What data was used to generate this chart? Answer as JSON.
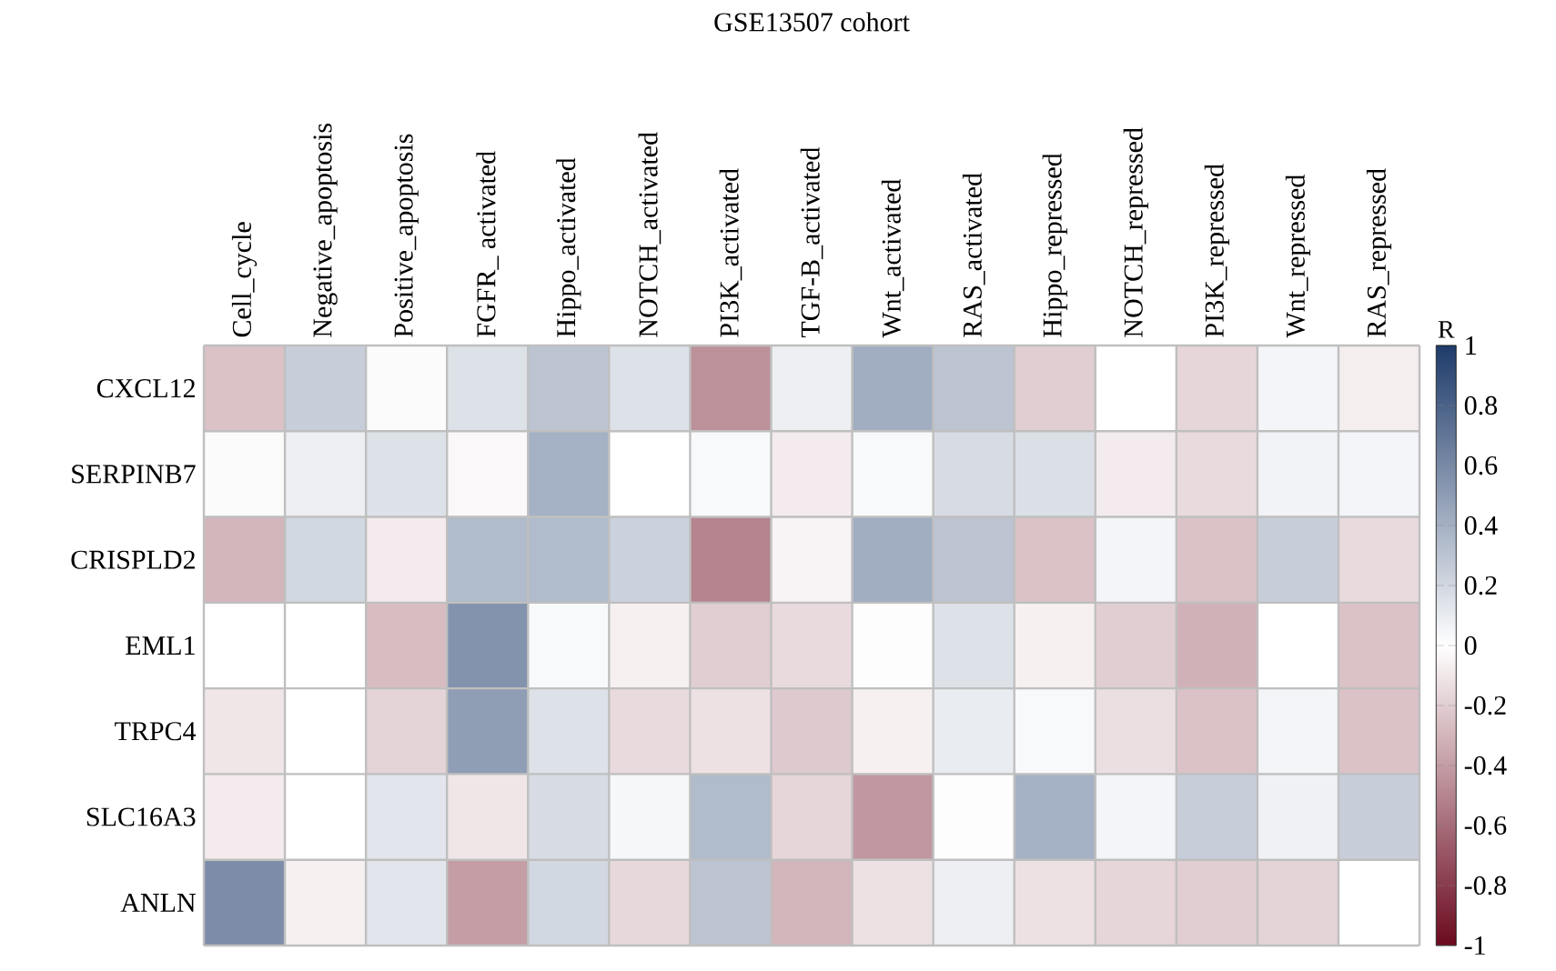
{
  "chart_data": {
    "type": "heatmap",
    "title": "GSE13507 cohort",
    "categories": [
      "Cell_cycle",
      "Negative_apoptosis",
      "Positive_apoptosis",
      "FGFR_ activated",
      "Hippo_activated",
      "NOTCH_activated",
      "PI3K_activated",
      "TGF-B_activated",
      "Wnt_activated",
      "RAS_activated",
      "Hippo_repressed",
      "NOTCH_repressed",
      "PI3K_repressed",
      "Wnt_repressed",
      "RAS_repressed"
    ],
    "y_categories": [
      "CXCL12",
      "SERPINB7",
      "CRISPLD2",
      "EML1",
      "TRPC4",
      "SLC16A3",
      "ANLN"
    ],
    "cells": [
      [
        -0.25,
        0.25,
        0.02,
        0.15,
        0.3,
        0.15,
        -0.45,
        0.08,
        0.42,
        0.3,
        -0.2,
        0.0,
        -0.17,
        0.05,
        -0.07
      ],
      [
        0.02,
        0.08,
        0.15,
        -0.03,
        0.4,
        0.0,
        0.03,
        -0.08,
        0.03,
        0.18,
        0.16,
        -0.08,
        -0.15,
        0.06,
        0.05
      ],
      [
        -0.3,
        0.2,
        -0.08,
        0.35,
        0.35,
        0.23,
        -0.5,
        -0.05,
        0.42,
        0.3,
        -0.25,
        0.05,
        -0.25,
        0.25,
        -0.15
      ],
      [
        0.0,
        0.0,
        -0.27,
        0.55,
        0.03,
        -0.06,
        -0.2,
        -0.15,
        0.01,
        0.15,
        -0.06,
        -0.2,
        -0.32,
        0.0,
        -0.25
      ],
      [
        -0.1,
        0.0,
        -0.18,
        0.5,
        0.15,
        -0.15,
        -0.12,
        -0.22,
        -0.06,
        0.1,
        0.03,
        -0.13,
        -0.25,
        0.05,
        -0.25
      ],
      [
        -0.08,
        0.0,
        0.13,
        -0.1,
        0.18,
        0.04,
        0.35,
        -0.17,
        -0.42,
        0.01,
        0.4,
        0.05,
        0.25,
        0.07,
        0.25
      ],
      [
        0.58,
        -0.06,
        0.13,
        -0.4,
        0.2,
        -0.16,
        0.3,
        -0.3,
        -0.12,
        0.08,
        -0.12,
        -0.17,
        -0.2,
        -0.18,
        0.0
      ]
    ],
    "clim": [
      -1,
      1
    ],
    "cticks": [
      -1,
      -0.8,
      -0.6,
      -0.4,
      -0.2,
      0,
      0.2,
      0.4,
      0.6,
      0.8,
      1
    ],
    "clabel": "R"
  }
}
